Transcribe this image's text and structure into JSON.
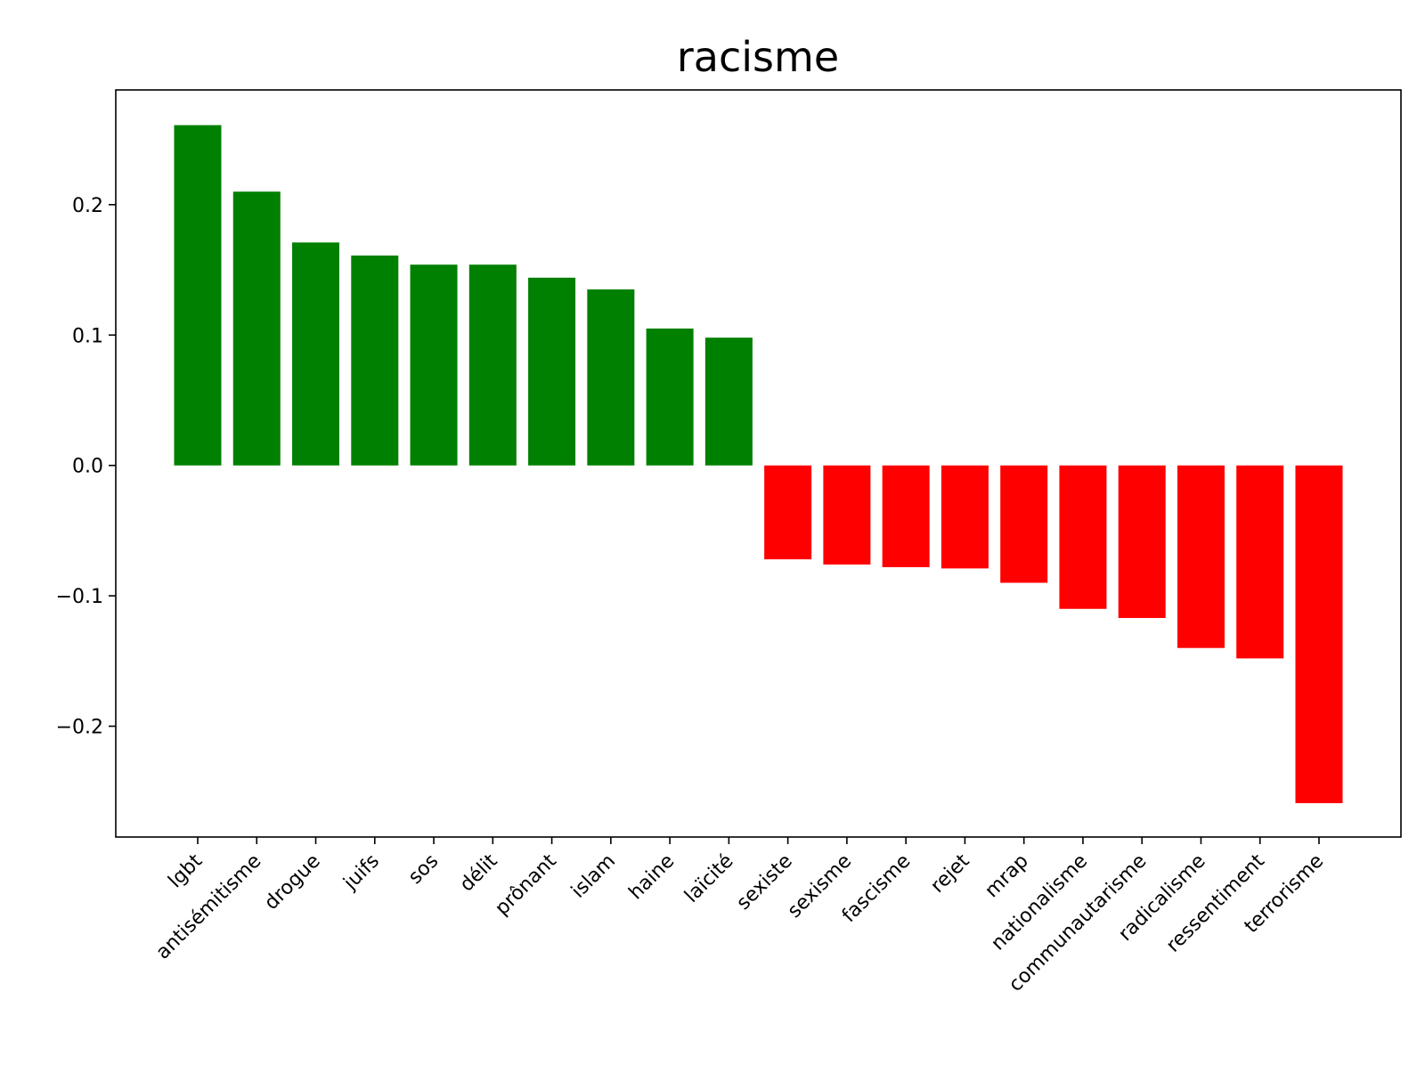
{
  "chart_data": {
    "type": "bar",
    "title": "racisme",
    "xlabel": "",
    "ylabel": "",
    "ylim": [
      -0.285,
      0.288
    ],
    "yticks": [
      -0.2,
      -0.1,
      0.0,
      0.1,
      0.2
    ],
    "ytick_labels": [
      "−0.2",
      "−0.1",
      "0.0",
      "0.1",
      "0.2"
    ],
    "grid": false,
    "positive_color": "#008000",
    "negative_color": "#ff0000",
    "categories": [
      "lgbt",
      "antisémitisme",
      "drogue",
      "juifs",
      "sos",
      "délit",
      "prônant",
      "islam",
      "haine",
      "laïcité",
      "sexiste",
      "sexisme",
      "fascisme",
      "rejet",
      "mrap",
      "nationalisme",
      "communautarisme",
      "radicalisme",
      "ressentiment",
      "terrorisme"
    ],
    "values": [
      0.261,
      0.21,
      0.171,
      0.161,
      0.154,
      0.154,
      0.144,
      0.135,
      0.105,
      0.098,
      -0.072,
      -0.076,
      -0.078,
      -0.079,
      -0.09,
      -0.11,
      -0.117,
      -0.14,
      -0.148,
      -0.259
    ]
  }
}
